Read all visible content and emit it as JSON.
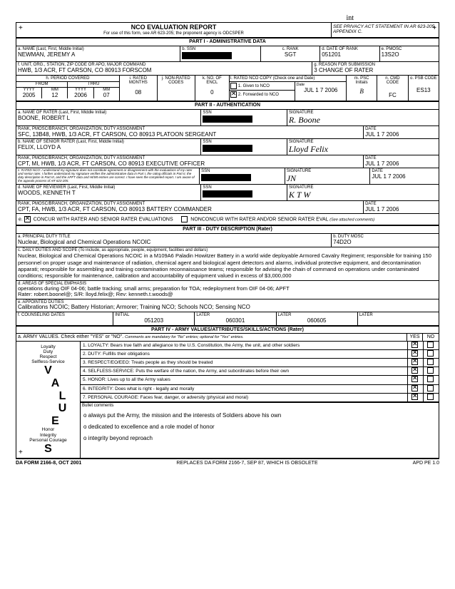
{
  "handnote": "int",
  "header": {
    "title": "NCO EVALUATION REPORT",
    "subtitle": "For use of this form, see AR 623-205; the proponent agency is ODCSPER",
    "privacy": "SEE PRIVACY ACT STATEMENT IN AR 623-205, APPENDIX C."
  },
  "part1": {
    "title": "PART I - ADMINISTRATIVE DATA",
    "name_lbl": "a. NAME (Last, First, Middle Initial)",
    "name": "NEWMAN, JEREMY A",
    "ssn_lbl": "b. SSN",
    "rank_lbl": "c. RANK",
    "rank": "SGT",
    "dor_lbl": "d. DATE OF RANK",
    "dor": "051201",
    "pmosc_lbl": "e. PMOSC",
    "pmosc": "13S2O",
    "unit_lbl": "f. UNIT, ORG., STATION, ZIP CODE OR APO, MAJOR COMMAND",
    "unit": "HWB, 1/3 ACR, FT CARSON, CO 80913    FORSCOM",
    "reason_lbl": "g. REASON FOR SUBMISSION",
    "reason": "3   CHANGE OF RATER",
    "period_lbl": "h. PERIOD COVERED",
    "from": "FROM",
    "thru": "THRU",
    "yyyy": "YYYY",
    "mm": "MM",
    "from_y": "2005",
    "from_m": "12",
    "thru_y": "2006",
    "thru_m": "07",
    "rated_months_lbl": "i. RATED MONTHS",
    "rated_months": "08",
    "nonrated_lbl": "j. NON-RATED CODES",
    "nonrated": "",
    "encl_lbl": "k. NO. OF ENCL",
    "encl": "0",
    "ncocopy_lbl": "l. RATED NCO COPY (Check one and Date)",
    "copy1": "1. Given to NCO",
    "copy2": "2. Forwarded to NCO",
    "copy_date": "JUL 1 7 2006",
    "psc_lbl": "m. PSC Initials",
    "cmd_lbl": "n. CMD CODE",
    "cmd": "FC",
    "psb_lbl": "o. PSB CODE",
    "psb": "ES13"
  },
  "part2": {
    "title": "PART II - AUTHENTICATION",
    "rater_lbl": "a. NAME OF RATER (Last, First, Middle Initial)",
    "rater": "BOONE, ROBERT L",
    "rater_rank_lbl": "RANK, PMOSC/BRANCH, ORGANIZATION, DUTY ASSIGNMENT",
    "rater_rank": "SFC, 13B48, HWB, 1/3 ACR, FT CARSON, CO 80913     PLATOON SERGEANT",
    "sr_lbl": "b. NAME OF SENIOR RATER (Last, First, Middle Initial)",
    "sr": "FELIX, LLOYD A",
    "sr_rank": "CPT, MI, HWB, 1/3 ACR, FT CARSON, CO 80913     EXECUTIVE OFFICER",
    "waiver": "c. RATED NCO: I understand my signature does not constitute agreement or disagreement with the evaluations of my rater and senior rater. I further understand my signature verifies the administrative data in Part I, the rating officials in Part II, the duty description in Part III, and the APFT data and Ht/Wt entries are correct. I have seen the completed report. I am aware of the appeals process of AR 623-205.",
    "rev_lbl": "d. NAME OF REVIEWER (Last, First, Middle Initial)",
    "rev": "WOODS, KENNETH T",
    "rev_rank": "CPT, FA, HWB, 1/3 ACR, FT CARSON, CO 80913     BATTERY COMMANDER",
    "ssn": "SSN",
    "signature": "SIGNATURE",
    "date": "DATE",
    "date1": "JUL 1 7 2006",
    "date2": "JUL 1 7 2006",
    "date3": "JUL 1 7 2006",
    "date4": "JUL 1 7 2006",
    "concur": "CONCUR WITH RATER AND SENIOR RATER EVALUATIONS",
    "nonconcur": "NONCONCUR WITH RATER AND/OR SENIOR RATER EVAL",
    "nonconcur_note": "(See attached comments)"
  },
  "part3": {
    "title": "PART III - DUTY DESCRIPTION  (Rater)",
    "a_lbl": "a. PRINCIPAL DUTY TITLE",
    "a": "Nuclear, Biological and Chemical Operations NCOIC",
    "b_lbl": "b. DUTY MOSC",
    "b": "74D2O",
    "c_lbl": "c. DAILY DUTIES AND SCOPE  (To include, as appropriate, people, equipment, facilities and dollars)",
    "c": "Nuclear, Biological and Chemical Operations NCOIC in a M109A6 Paladin Howitzer Battery in a world wide deployable Armored Cavalry Regiment; responsible for training 150 personnel on proper usage and maintenance of radiation, chemical agent and biological agent detectors and alarms, individual protective equipment, and decontamination apparati; responsible for assembling and training contamination reconnaissance teams; responsible for advising the chain of command on operations under contaminated conditions; responsible for maintenance, calibration and accountability of equipment valued in excess of $3,000,000",
    "d_lbl": "d. AREAS OF SPECIAL EMPHASIS",
    "d": "operations during OIF 04-06; battle tracking; small arms; preparation for TOA; redeployment from OIF 04-06; APFT\nRater: robert.boonel@; S/R: lloyd.felix@; Rev: kenneth.t.woods@",
    "e_lbl": "e. APPOINTED DUTIES",
    "e": "Calibrations NCOIC; Battery Historian; Armorer; Training NCO; Schools NCO; Sensing NCO",
    "f_lbl": "f. COUNSELING DATES",
    "init_lbl": "INITIAL",
    "init": "051203",
    "later1": "060301",
    "later2": "060605",
    "later_lbl": "LATER"
  },
  "part4": {
    "title": "PART IV - ARMY VALUES/ATTRIBUTES/SKILLS/ACTIONS  (Rater)",
    "a_lbl": "a. ARMY VALUES. Check either \"YES\" or \"NO\".",
    "a_note": "Comments are mandatory for \"No\" entries; optional for \"Yes\" entries.",
    "yes": "YES",
    "no": "NO",
    "values_left": [
      "Loyalty",
      "Duty",
      "Respect",
      "Selfless-Service"
    ],
    "values_right": [
      "Honor",
      "Integrity",
      "Personal Courage"
    ],
    "letters": [
      "V",
      "A",
      "L",
      "U",
      "E",
      "S"
    ],
    "rows": [
      "1. LOYALTY: Bears true faith and allegiance to the U.S. Constitution, the Army, the unit, and other soldiers",
      "2. DUTY: Fulfills their obligations",
      "3. RESPECT/EO/EEO: Treats people as they should be treated",
      "4. SELFLESS-SERVICE: Puts the welfare of the nation, the Army, and subordinates before their own",
      "5. HONOR: Lives up to all the Army values",
      "6. INTEGRITY: Does what is right - legally and morally",
      "7. PERSONAL COURAGE: Faces fear, danger, or adversity (physical and moral)"
    ],
    "bullets_lbl": "Bullet comments",
    "bullets": [
      "o always put the Army, the mission and the interests of Soldiers above his own",
      "o dedicated to excellence and a role model of honor",
      "o integrity beyond reproach"
    ]
  },
  "footer": {
    "left": "DA FORM 2166-8, OCT 2001",
    "mid": "REPLACES DA FORM 2166-7, SEP 87, WHICH IS OBSOLETE",
    "right": "APD PE 1.0"
  }
}
